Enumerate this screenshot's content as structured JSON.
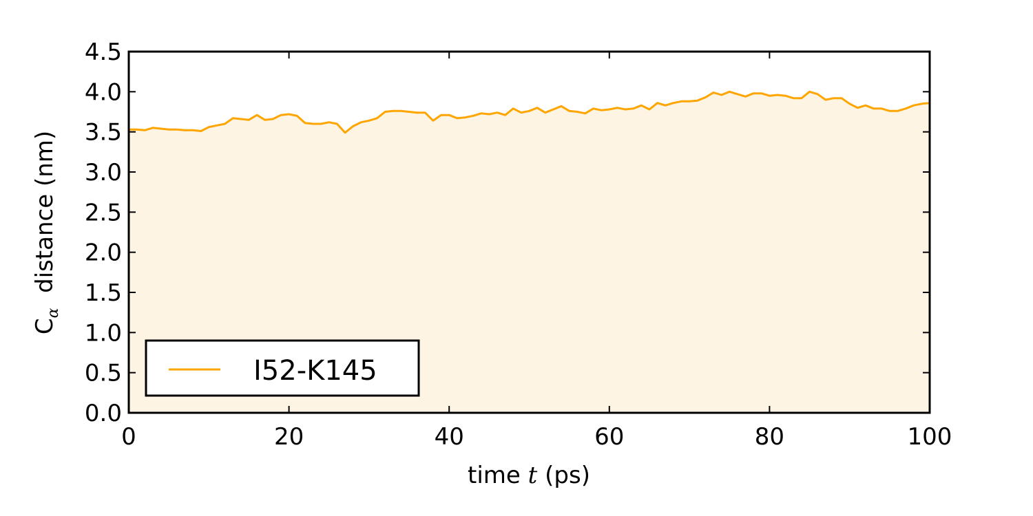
{
  "chart_data": {
    "type": "area",
    "title": "",
    "xlabel": {
      "pre": "time ",
      "var": "t",
      "post": " (ps)"
    },
    "ylabel": {
      "base": "C",
      "sub": "α",
      "rest": "  distance (nm)"
    },
    "xlim": [
      0,
      100
    ],
    "ylim": [
      0,
      4.5
    ],
    "xticks": [
      "0",
      "20",
      "40",
      "60",
      "80",
      "100"
    ],
    "yticks": [
      "0.0",
      "0.5",
      "1.0",
      "1.5",
      "2.0",
      "2.5",
      "3.0",
      "3.5",
      "4.0",
      "4.5"
    ],
    "grid": false,
    "legend_position": "lower-left",
    "colors": {
      "line": "#ffa500",
      "fill": "#fdf4e3"
    },
    "series": [
      {
        "name": "I52-K145",
        "x": [
          0,
          1,
          2,
          3,
          4,
          5,
          6,
          7,
          8,
          9,
          10,
          11,
          12,
          13,
          14,
          15,
          16,
          17,
          18,
          19,
          20,
          21,
          22,
          23,
          24,
          25,
          26,
          27,
          28,
          29,
          30,
          31,
          32,
          33,
          34,
          35,
          36,
          37,
          38,
          39,
          40,
          41,
          42,
          43,
          44,
          45,
          46,
          47,
          48,
          49,
          50,
          51,
          52,
          53,
          54,
          55,
          56,
          57,
          58,
          59,
          60,
          61,
          62,
          63,
          64,
          65,
          66,
          67,
          68,
          69,
          70,
          71,
          72,
          73,
          74,
          75,
          76,
          77,
          78,
          79,
          80,
          81,
          82,
          83,
          84,
          85,
          86,
          87,
          88,
          89,
          90,
          91,
          92,
          93,
          94,
          95,
          96,
          97,
          98,
          99,
          100
        ],
        "values": [
          3.53,
          3.53,
          3.52,
          3.55,
          3.54,
          3.53,
          3.53,
          3.52,
          3.52,
          3.51,
          3.56,
          3.58,
          3.6,
          3.67,
          3.66,
          3.65,
          3.71,
          3.65,
          3.66,
          3.71,
          3.72,
          3.7,
          3.61,
          3.6,
          3.6,
          3.62,
          3.6,
          3.49,
          3.57,
          3.62,
          3.64,
          3.67,
          3.75,
          3.76,
          3.76,
          3.75,
          3.74,
          3.74,
          3.64,
          3.71,
          3.71,
          3.67,
          3.68,
          3.7,
          3.73,
          3.72,
          3.74,
          3.71,
          3.79,
          3.74,
          3.76,
          3.8,
          3.74,
          3.78,
          3.82,
          3.76,
          3.75,
          3.73,
          3.79,
          3.77,
          3.78,
          3.8,
          3.78,
          3.79,
          3.83,
          3.78,
          3.86,
          3.83,
          3.86,
          3.88,
          3.88,
          3.89,
          3.93,
          3.99,
          3.96,
          4.0,
          3.97,
          3.94,
          3.98,
          3.98,
          3.95,
          3.96,
          3.95,
          3.92,
          3.92,
          4.0,
          3.97,
          3.9,
          3.92,
          3.92,
          3.85,
          3.8,
          3.83,
          3.79,
          3.79,
          3.76,
          3.76,
          3.79,
          3.83,
          3.85,
          3.86
        ]
      }
    ]
  }
}
